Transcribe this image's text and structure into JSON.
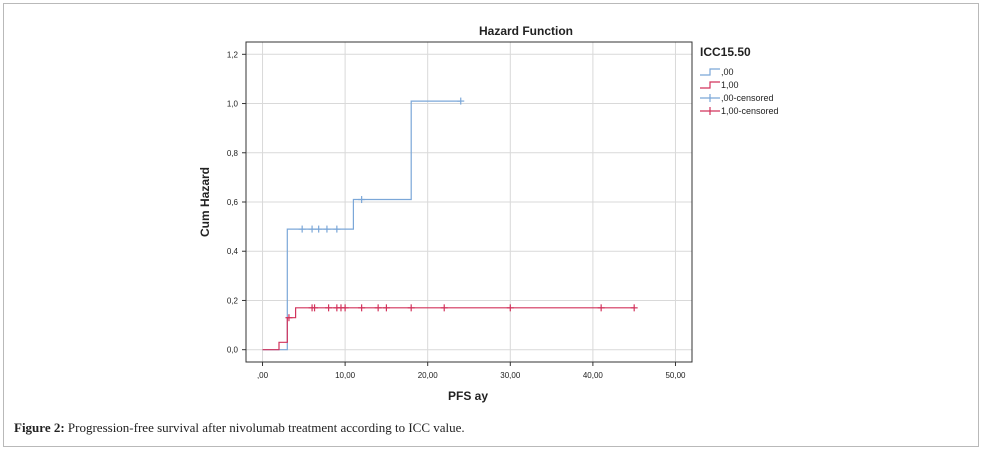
{
  "caption": {
    "label": "Figure 2:",
    "text": "Progression-free survival after nivolumab treatment according to ICC value."
  },
  "chart_data": {
    "type": "line",
    "title": "Hazard Function",
    "xlabel": "PFS ay",
    "ylabel": "Cum Hazard",
    "xlim": [
      -2,
      52
    ],
    "ylim": [
      -0.05,
      1.25
    ],
    "x_ticks": [
      0,
      10,
      20,
      30,
      40,
      50
    ],
    "x_tick_labels": [
      ",00",
      "10,00",
      "20,00",
      "30,00",
      "40,00",
      "50,00"
    ],
    "y_ticks": [
      0,
      0.2,
      0.4,
      0.6,
      0.8,
      1.0,
      1.2
    ],
    "y_tick_labels": [
      "0,0",
      "0,2",
      "0,4",
      "0,6",
      "0,8",
      "1,0",
      "1,2"
    ],
    "grid": true,
    "legend": {
      "title": "ICC15.50",
      "placement": "right",
      "entries": [
        ",00",
        "1,00",
        ",00-censored",
        "1,00-censored"
      ]
    },
    "series": [
      {
        "name": ",00",
        "color": "#7ba7d8",
        "step": [
          [
            0,
            0
          ],
          [
            3,
            0
          ],
          [
            3,
            0.49
          ],
          [
            11,
            0.49
          ],
          [
            11,
            0.61
          ],
          [
            18,
            0.61
          ],
          [
            18,
            1.01
          ],
          [
            24,
            1.01
          ]
        ],
        "censored": [
          4.8,
          6,
          6.8,
          7.8,
          9,
          12,
          24
        ]
      },
      {
        "name": "1,00",
        "color": "#d2335c",
        "step": [
          [
            0,
            0
          ],
          [
            2,
            0
          ],
          [
            2,
            0.03
          ],
          [
            3,
            0.03
          ],
          [
            3,
            0.13
          ],
          [
            4,
            0.13
          ],
          [
            4,
            0.17
          ],
          [
            45,
            0.17
          ]
        ],
        "censored": [
          3.2,
          6,
          6.3,
          8,
          9,
          9.5,
          10,
          12,
          14,
          15,
          18,
          22,
          30,
          41,
          45
        ]
      }
    ]
  }
}
